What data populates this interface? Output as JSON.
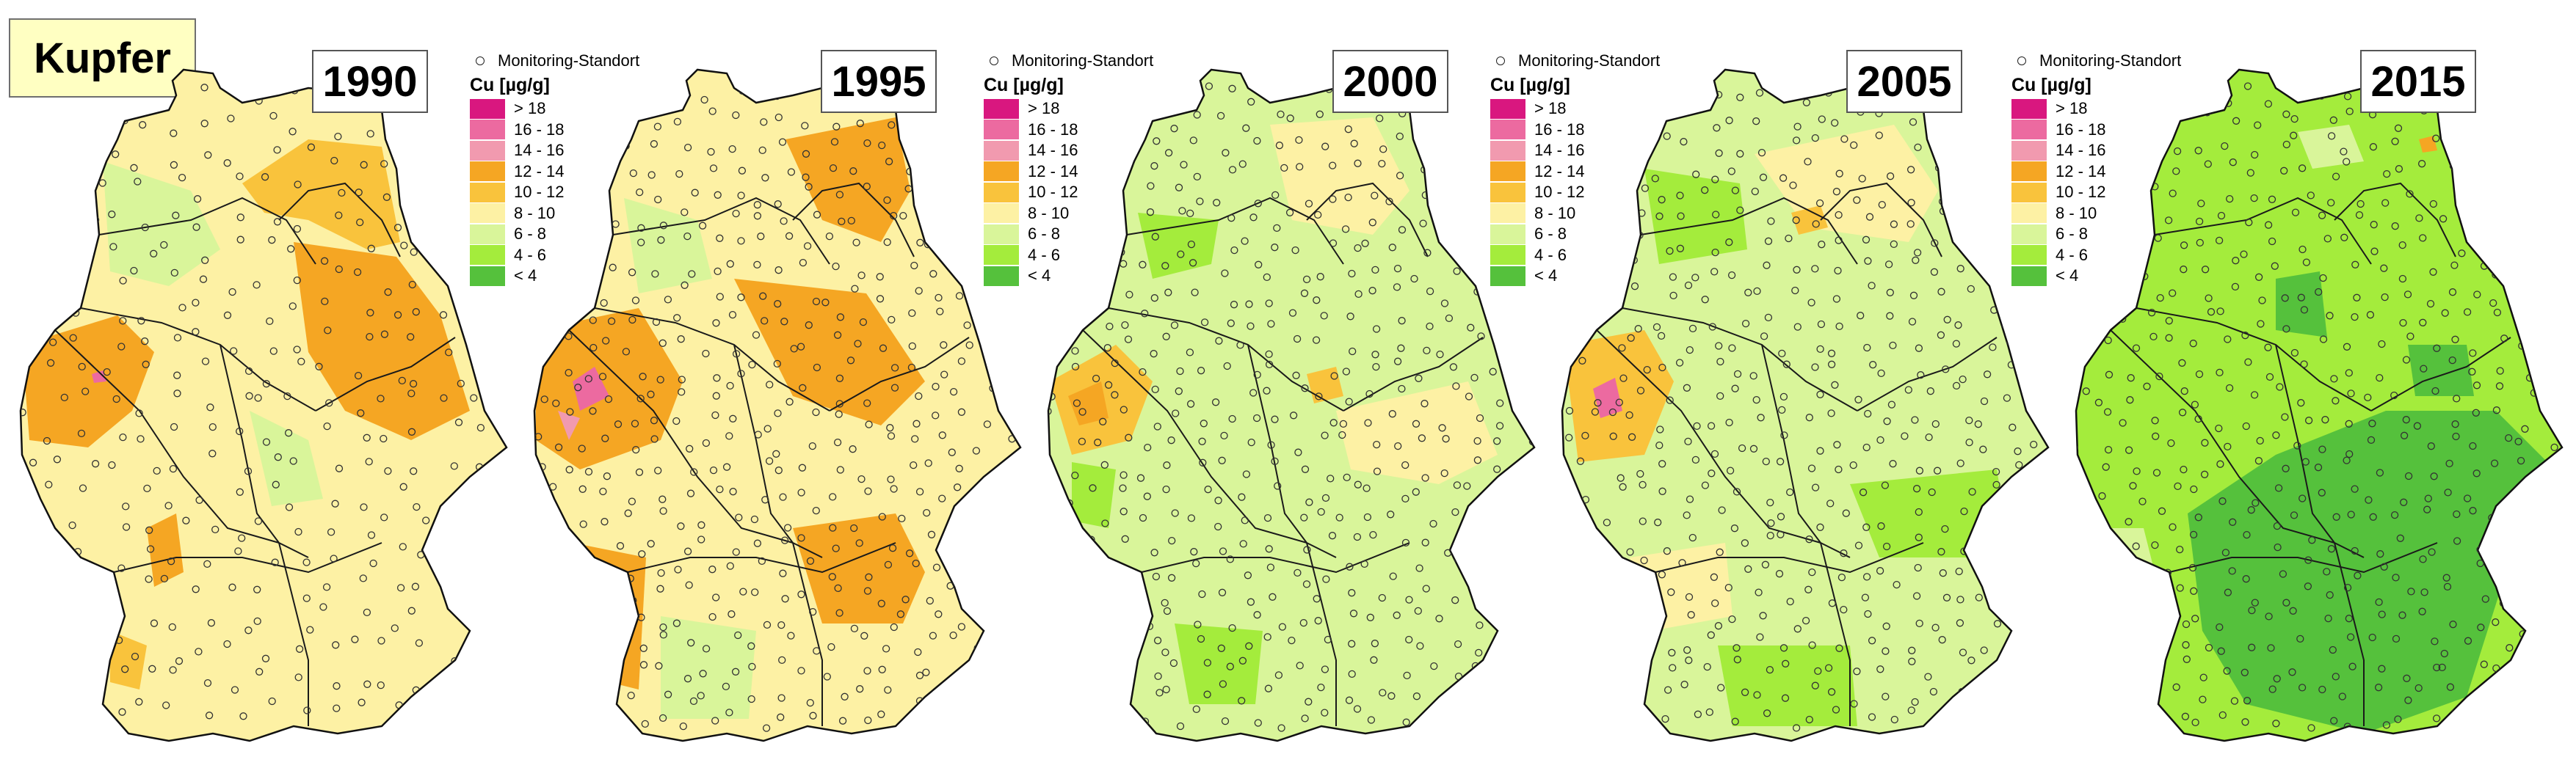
{
  "title": "Kupfer",
  "legend": {
    "marker_label": "Monitoring-Standort",
    "title": "Cu [µg/g]",
    "classes": [
      {
        "label": "> 18",
        "color": "#d9177f"
      },
      {
        "label": "16 - 18",
        "color": "#ec6aa0"
      },
      {
        "label": "14 - 16",
        "color": "#f19aaf"
      },
      {
        "label": "12 - 14",
        "color": "#f5a623"
      },
      {
        "label": "10 - 12",
        "color": "#f9c33c"
      },
      {
        "label": "8 - 10",
        "color": "#fdf1a4"
      },
      {
        "label": "6 - 8",
        "color": "#d9f59a"
      },
      {
        "label": "4 - 6",
        "color": "#a4ec3c"
      },
      {
        "label": "< 4",
        "color": "#55c13c"
      }
    ]
  },
  "maps": [
    {
      "year": "1990",
      "base_color": "#fdf1a4",
      "legend_shown": true
    },
    {
      "year": "1995",
      "base_color": "#fdf1a4",
      "legend_shown": true
    },
    {
      "year": "2000",
      "base_color": "#d9f59a",
      "legend_shown": true
    },
    {
      "year": "2005",
      "base_color": "#d9f59a",
      "legend_shown": true
    },
    {
      "year": "2015",
      "base_color": "#a4ec3c",
      "legend_shown": false
    }
  ]
}
